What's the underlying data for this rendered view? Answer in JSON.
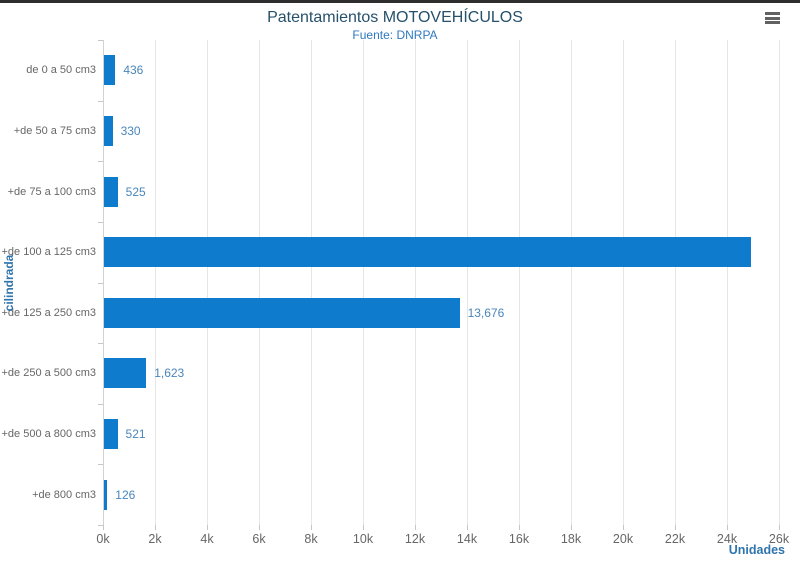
{
  "header": {
    "title": "Patentamientos MOTOVEHÍCULOS",
    "subtitle": "Fuente: DNRPA"
  },
  "toolbar": {
    "menu_icon": "hamburger-menu"
  },
  "chart_data": {
    "type": "bar",
    "orientation": "horizontal",
    "title": "Patentamientos MOTOVEHÍCULOS",
    "subtitle": "Fuente: DNRPA",
    "xlabel": "Unidades",
    "ylabel": "cilindrada",
    "categories": [
      "de 0 a 50 cm3",
      "+de 50 a 75 cm3",
      "+de 75 a 100 cm3",
      "+de 100 a 125 cm3",
      "+de 125 a 250 cm3",
      "+de 250 a 500 cm3",
      "+de 500 a 800 cm3",
      "+de 800 cm3"
    ],
    "values": [
      436,
      330,
      525,
      24900,
      13676,
      1623,
      521,
      126
    ],
    "data_labels": [
      "436",
      "330",
      "525",
      "",
      "13,676",
      "1,623",
      "521",
      "126"
    ],
    "xlim": [
      0,
      26000
    ],
    "x_tick_step": 2000,
    "x_tick_labels": [
      "0k",
      "2k",
      "4k",
      "6k",
      "8k",
      "10k",
      "12k",
      "14k",
      "16k",
      "18k",
      "20k",
      "22k",
      "24k",
      "26k"
    ],
    "grid": true,
    "legend": "none",
    "colors": {
      "bar": "#0f7bcd",
      "data_label": "#4a86bb",
      "title": "#27506b",
      "subtitle": "#2e7ac0",
      "axis_title": "#2e74ad",
      "tick_label": "#666666",
      "category_label": "#666666",
      "grid_line": "#e6e6e6",
      "axis_line": "#d2d2d2",
      "top_border": "#2e2e2e"
    }
  }
}
